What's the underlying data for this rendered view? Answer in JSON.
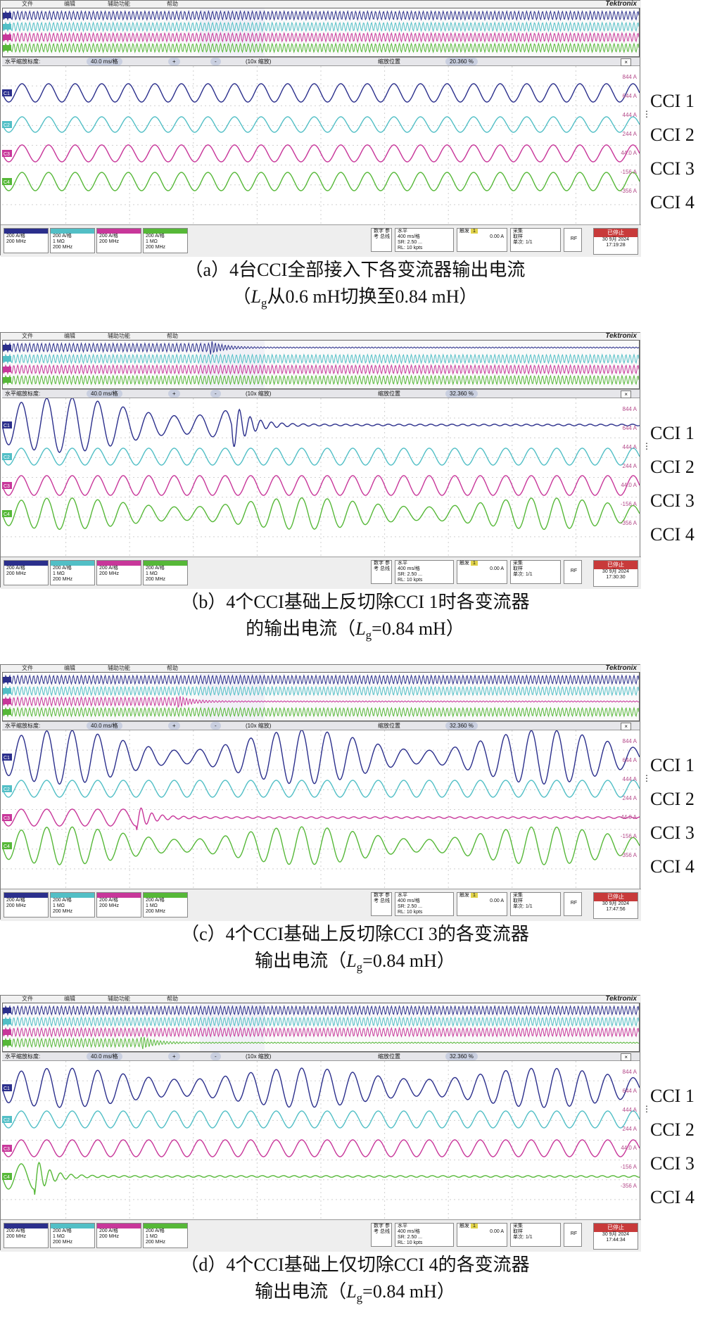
{
  "menu": [
    "文件",
    "编辑",
    "辅助功能",
    "帮助"
  ],
  "brand": "Tektronix",
  "zoom_bar": {
    "label": "水平缩放标度:",
    "scale": "40.0 ms/格",
    "plus": "+",
    "minus": "-",
    "factor": "(10x 缩放)",
    "position_label": "缩放位置",
    "close": "×"
  },
  "channel_tags": [
    "C1",
    "C2",
    "C3",
    "C4"
  ],
  "right_levels": [
    "844 A",
    "644 A",
    "444 A",
    "244 A",
    "44.0 A",
    "-156 A",
    "-356 A"
  ],
  "channels": [
    {
      "name": "C1",
      "scale": "200 A/格",
      "imp": "",
      "bw": "200 MHz"
    },
    {
      "name": "Ch 2",
      "scale": "200 A/格",
      "imp": "1 MΩ",
      "bw": "200 MHz"
    },
    {
      "name": "Ch 3",
      "scale": "200 A/格",
      "imp": "",
      "bw": "200 MHz"
    },
    {
      "name": "Ch 4",
      "scale": "200 A/格",
      "imp": "1 MΩ",
      "bw": "200 MHz"
    }
  ],
  "colors": {
    "c1": "#2b2f8c",
    "c2": "#52bfc6",
    "c3": "#c8379a",
    "c4": "#56b838"
  },
  "status": {
    "digital": "数字 参考 总线",
    "horizontal_title": "水平",
    "horizontal_scale": "400 ms/格",
    "sample_rate": "SR: 2.50 ...",
    "record_length": "RL: 10 kpts",
    "trigger_title": "触发",
    "trigger_ch": "1",
    "trigger_level": "0.00 A",
    "acq_title": "采集",
    "acq_mode": "取样",
    "acq_count": "单次: 1/1",
    "rf": "RF",
    "stopped": "已停止",
    "date": "30 9月 2024"
  },
  "labels": [
    "CCI 1",
    "CCI 2",
    "CCI 3",
    "CCI 4"
  ],
  "panels": [
    {
      "id": "a",
      "zoom_position": "20.360 %",
      "time": "17:19:28",
      "caption1": "（a）4台CCI全部接入下各变流器输出电流",
      "caption2_pre": "（",
      "caption2_L": "L",
      "caption2_sub": "g",
      "caption2_post": "从0.6 mH切换至0.84 mH）"
    },
    {
      "id": "b",
      "zoom_position": "32.360 %",
      "time": "17:30:30",
      "caption1": "（b）4个CCI基础上反切除CCI 1时各变流器",
      "caption2_pre": "的输出电流（",
      "caption2_L": "L",
      "caption2_sub": "g",
      "caption2_post": "=0.84 mH）"
    },
    {
      "id": "c",
      "zoom_position": "32.360 %",
      "time": "17:47:56",
      "caption1": "（c）4个CCI基础上反切除CCI 3的各变流器",
      "caption2_pre": "输出电流（",
      "caption2_L": "L",
      "caption2_sub": "g",
      "caption2_post": "=0.84 mH）"
    },
    {
      "id": "d",
      "zoom_position": "32.360 %",
      "time": "17:44:34",
      "caption1": "（d）4个CCI基础上仅切除CCI 4的各变流器",
      "caption2_pre": "输出电流（",
      "caption2_L": "L",
      "caption2_sub": "g",
      "caption2_post": "=0.84 mH）"
    }
  ]
}
